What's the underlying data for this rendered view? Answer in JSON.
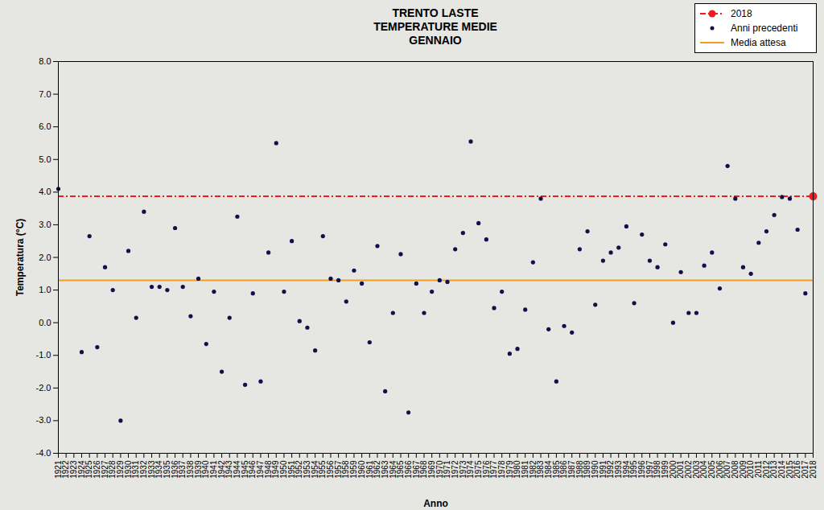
{
  "chart_data": {
    "type": "scatter",
    "title": [
      "TRENTO LASTE",
      "TEMPERATURE MEDIE",
      "GENNAIO"
    ],
    "x_label": "Anno",
    "y_label": "Temperatura (°C)",
    "legend": "top-right",
    "grid": false,
    "xlim": [
      1921,
      2018
    ],
    "xticks": [
      1921,
      1922,
      1923,
      1924,
      1925,
      1926,
      1927,
      1928,
      1929,
      1930,
      1931,
      1932,
      1933,
      1934,
      1935,
      1936,
      1937,
      1938,
      1939,
      1940,
      1941,
      1942,
      1943,
      1944,
      1945,
      1946,
      1947,
      1948,
      1949,
      1950,
      1951,
      1952,
      1953,
      1954,
      1955,
      1956,
      1957,
      1958,
      1959,
      1960,
      1961,
      1962,
      1963,
      1964,
      1965,
      1966,
      1967,
      1968,
      1969,
      1970,
      1971,
      1972,
      1973,
      1974,
      1975,
      1976,
      1977,
      1978,
      1979,
      1980,
      1981,
      1982,
      1983,
      1984,
      1985,
      1986,
      1987,
      1988,
      1989,
      1990,
      1991,
      1992,
      1993,
      1994,
      1995,
      1996,
      1997,
      1998,
      1999,
      2000,
      2001,
      2002,
      2003,
      2004,
      2005,
      2006,
      2007,
      2008,
      2009,
      2010,
      2011,
      2012,
      2013,
      2014,
      2015,
      2016,
      2017,
      2018
    ],
    "ylim": [
      -4,
      8
    ],
    "yticks": [
      {
        "value": -4,
        "label": "-4.0"
      },
      {
        "value": -3,
        "label": "-3.0"
      },
      {
        "value": -2,
        "label": "-2.0"
      },
      {
        "value": -1,
        "label": "-1.0"
      },
      {
        "value": 0,
        "label": "0.0"
      },
      {
        "value": 1,
        "label": "1.0"
      },
      {
        "value": 2,
        "label": "2.0"
      },
      {
        "value": 3,
        "label": "3.0"
      },
      {
        "value": 4,
        "label": "4.0"
      },
      {
        "value": 5,
        "label": "5.0"
      },
      {
        "value": 6,
        "label": "6.0"
      },
      {
        "value": 7,
        "label": "7.0"
      },
      {
        "value": 8,
        "label": "8.0"
      }
    ],
    "series": [
      {
        "name": "2018",
        "type": "scatter",
        "color": "#ee1c1c",
        "marker": "circle",
        "line_style": "dashdot",
        "x": [
          2018
        ],
        "values": [
          3.87
        ]
      },
      {
        "name": "Anni precedenti",
        "type": "scatter",
        "color": "#10104a",
        "marker": "circle",
        "x": [
          1921,
          1924,
          1925,
          1926,
          1927,
          1928,
          1929,
          1930,
          1931,
          1932,
          1933,
          1934,
          1935,
          1936,
          1937,
          1938,
          1939,
          1940,
          1941,
          1942,
          1943,
          1944,
          1945,
          1946,
          1947,
          1948,
          1949,
          1950,
          1951,
          1952,
          1953,
          1954,
          1955,
          1956,
          1957,
          1958,
          1959,
          1960,
          1961,
          1962,
          1963,
          1964,
          1965,
          1966,
          1967,
          1968,
          1969,
          1970,
          1971,
          1972,
          1973,
          1974,
          1975,
          1976,
          1977,
          1978,
          1979,
          1980,
          1981,
          1982,
          1983,
          1984,
          1985,
          1986,
          1987,
          1988,
          1989,
          1990,
          1991,
          1992,
          1993,
          1994,
          1995,
          1996,
          1997,
          1998,
          1999,
          2000,
          2001,
          2002,
          2003,
          2004,
          2005,
          2006,
          2007,
          2008,
          2009,
          2010,
          2011,
          2012,
          2013,
          2014,
          2015,
          2016,
          2017
        ],
        "values": [
          4.1,
          -0.9,
          2.65,
          -0.75,
          1.7,
          1.0,
          -3.0,
          2.2,
          0.15,
          3.4,
          1.1,
          1.1,
          1.0,
          2.9,
          1.1,
          0.2,
          1.35,
          -0.65,
          0.95,
          -1.5,
          0.15,
          3.25,
          -1.9,
          0.9,
          -1.8,
          2.15,
          5.5,
          0.95,
          2.5,
          0.05,
          -0.15,
          -0.85,
          2.65,
          1.35,
          1.3,
          0.65,
          1.6,
          1.2,
          -0.6,
          2.35,
          -2.1,
          0.3,
          2.1,
          -2.75,
          1.2,
          0.3,
          0.95,
          1.3,
          1.25,
          2.25,
          2.75,
          5.55,
          3.05,
          2.55,
          0.45,
          0.95,
          -0.95,
          -0.8,
          0.4,
          1.85,
          3.8,
          -0.2,
          -1.8,
          -0.1,
          -0.3,
          2.25,
          2.8,
          0.55,
          1.9,
          2.15,
          2.3,
          2.95,
          0.6,
          2.7,
          1.9,
          1.7,
          2.4,
          0.0,
          1.55,
          0.3,
          0.3,
          1.75,
          2.15,
          1.05,
          4.8,
          3.8,
          1.7,
          1.5,
          2.45,
          2.8,
          3.3,
          3.85,
          3.8,
          2.85,
          0.9
        ]
      },
      {
        "name": "Media attesa",
        "type": "hline",
        "color": "#f0a020",
        "value": 1.3
      }
    ]
  }
}
